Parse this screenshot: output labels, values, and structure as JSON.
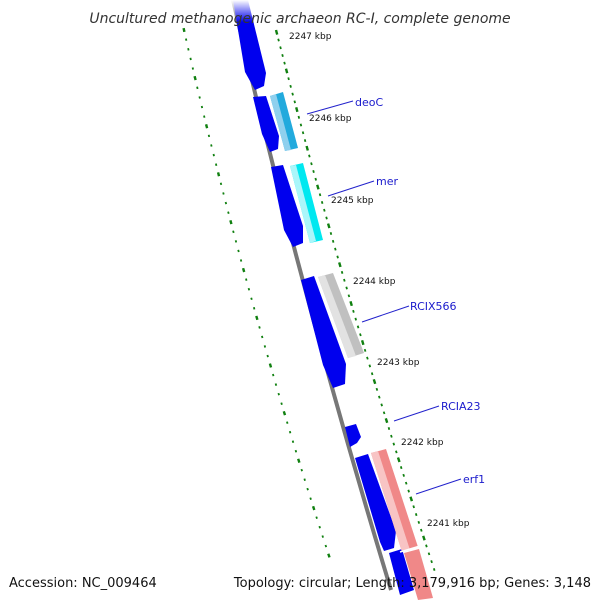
{
  "title": "Uncultured methanogenic archaeon RC-I, complete genome",
  "footer": {
    "accession": "Accession: NC_009464",
    "summary": "Topology: circular; Length: 3,179,916 bp; Genes: 3,148"
  },
  "colors": {
    "backbone": "#777777",
    "forward_genes": "#0000ee",
    "tick": "#108010",
    "label_text": "#1a1acc",
    "leader_line": "#2222cc"
  },
  "scale_ticks": [
    {
      "label": "2247 kbp"
    },
    {
      "label": "2246 kbp"
    },
    {
      "label": "2245 kbp"
    },
    {
      "label": "2244 kbp"
    },
    {
      "label": "2243 kbp"
    },
    {
      "label": "2242 kbp"
    },
    {
      "label": "2241 kbp"
    }
  ],
  "gene_labels": [
    {
      "name": "deoC",
      "color": "#22aadd"
    },
    {
      "name": "mer",
      "color": "#00e0f0"
    },
    {
      "name": "RCIX566",
      "color": "#c0c0c0"
    },
    {
      "name": "RCIA23",
      "color": "#0000ee"
    },
    {
      "name": "erf1",
      "color": "#f08888"
    }
  ]
}
